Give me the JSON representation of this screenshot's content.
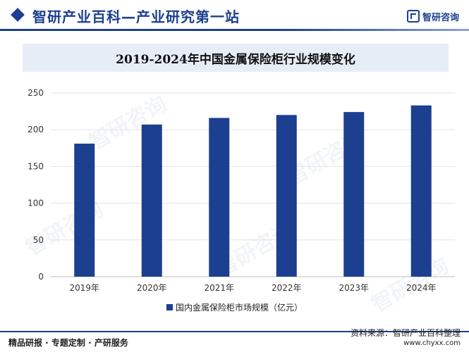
{
  "header": {
    "title": "智研产业百科—产业研究第一站",
    "logo_text": "智研咨询",
    "logo_icon": "zhiyan-logo-icon"
  },
  "watermark_text": "智研咨询",
  "chart_data": {
    "type": "bar",
    "title": "2019-2024年中国金属保险柜行业规模变化",
    "categories": [
      "2019年",
      "2020年",
      "2021年",
      "2022年",
      "2023年",
      "2024年"
    ],
    "series": [
      {
        "name": "国内金属保险柜市场规模（亿元）",
        "values": [
          181,
          207,
          216,
          220,
          224,
          233
        ],
        "color": "#1c3f8f"
      }
    ],
    "yticks": [
      0,
      50,
      100,
      150,
      200,
      250
    ],
    "ylim": [
      0,
      250
    ],
    "grid": true,
    "legend_position": "bottom"
  },
  "footer": {
    "left": "精品研报 · 专题定制 · 产研服务",
    "source": "资料来源：智研产业百科整理",
    "url": "www.chyxx.com"
  }
}
